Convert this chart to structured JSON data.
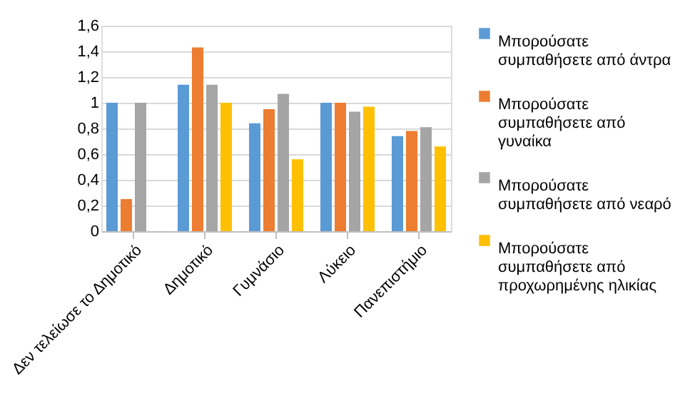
{
  "chart_data": {
    "type": "bar",
    "categories": [
      "Δεν τελείωσε το Δημοτικό",
      "Δημοτικό",
      "Γυμνάσιο",
      "Λύκειο",
      "Πανεπιστήμιο"
    ],
    "series": [
      {
        "name": "Μπορούσατε συμπαθήσετε από άντρα",
        "color": "#5b9bd5",
        "values": [
          1.0,
          1.14,
          0.84,
          1.0,
          0.74
        ]
      },
      {
        "name": "Μπορούσατε συμπαθήσετε από γυναίκα",
        "color": "#ed7d31",
        "values": [
          0.25,
          1.43,
          0.95,
          1.0,
          0.78
        ]
      },
      {
        "name": "Μπορούσατε συμπαθήσετε από νεαρό",
        "color": "#a5a5a5",
        "values": [
          1.0,
          1.14,
          1.07,
          0.93,
          0.81
        ]
      },
      {
        "name": "Μπορούσατε συμπαθήσετε από προχωρημένης ηλικίας",
        "color": "#ffc000",
        "values": [
          null,
          1.0,
          0.56,
          0.97,
          0.66
        ]
      }
    ],
    "ylim": [
      0,
      1.6
    ],
    "yticks": [
      {
        "value": 0,
        "label": "0"
      },
      {
        "value": 0.2,
        "label": "0,2"
      },
      {
        "value": 0.4,
        "label": "0,4"
      },
      {
        "value": 0.6,
        "label": "0,6"
      },
      {
        "value": 0.8,
        "label": "0,8"
      },
      {
        "value": 1,
        "label": "1"
      },
      {
        "value": 1.2,
        "label": "1,2"
      },
      {
        "value": 1.4,
        "label": "1,4"
      },
      {
        "value": 1.6,
        "label": "1,6"
      }
    ],
    "grid": "y",
    "legend": "right"
  }
}
